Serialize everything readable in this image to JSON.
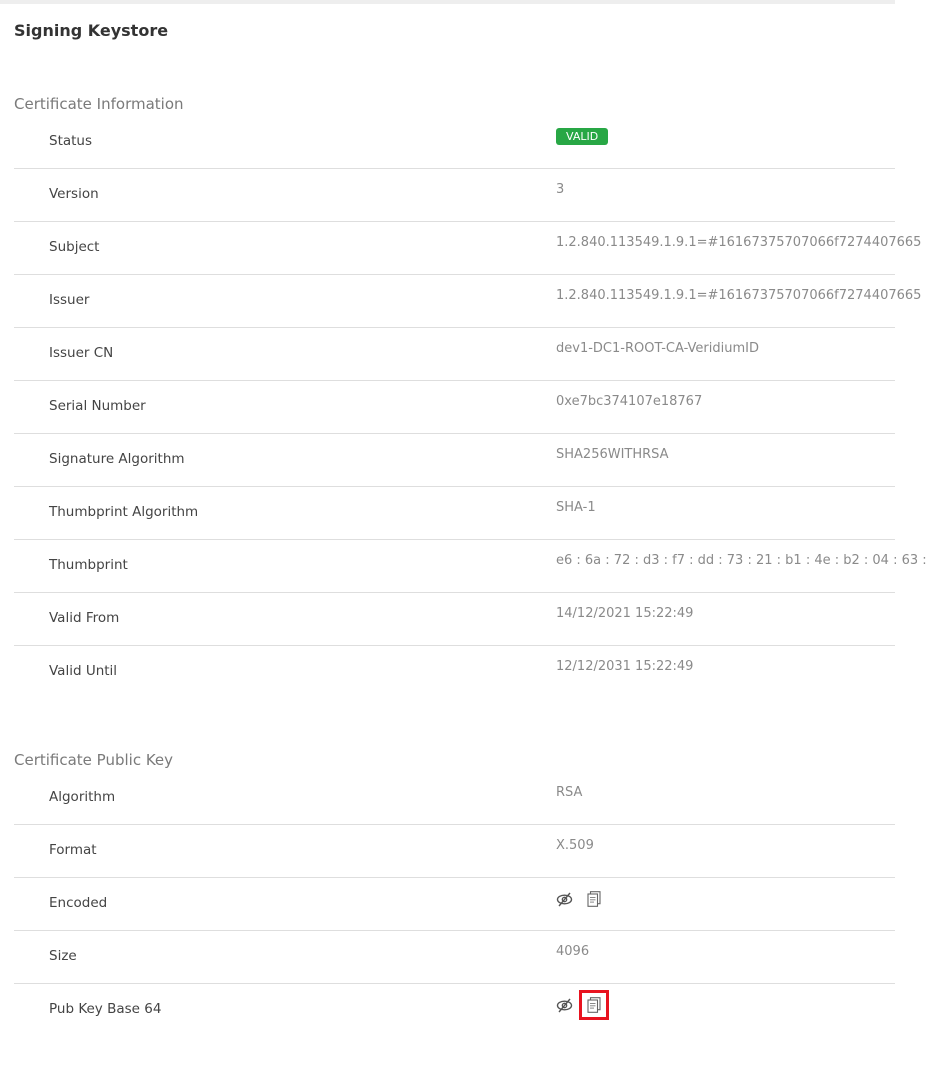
{
  "title": "Signing Keystore",
  "certificate_information": {
    "heading": "Certificate Information",
    "rows": [
      {
        "label": "Status",
        "value": "VALID",
        "type": "badge"
      },
      {
        "label": "Version",
        "value": "3"
      },
      {
        "label": "Subject",
        "value": "1.2.840.113549.1.9.1=#16167375707066f7274407665"
      },
      {
        "label": "Issuer",
        "value": "1.2.840.113549.1.9.1=#16167375707066f7274407665"
      },
      {
        "label": "Issuer CN",
        "value": "dev1-DC1-ROOT-CA-VeridiumID"
      },
      {
        "label": "Serial Number",
        "value": "0xe7bc374107e18767"
      },
      {
        "label": "Signature Algorithm",
        "value": "SHA256WITHRSA"
      },
      {
        "label": "Thumbprint Algorithm",
        "value": "SHA-1"
      },
      {
        "label": "Thumbprint",
        "value": "e6 : 6a : 72 : d3 : f7 : dd : 73 : 21 : b1 : 4e : b2 : 04 : 63 :"
      },
      {
        "label": "Valid From",
        "value": "14/12/2021 15:22:49"
      },
      {
        "label": "Valid Until",
        "value": "12/12/2031 15:22:49"
      }
    ]
  },
  "certificate_public_key": {
    "heading": "Certificate Public Key",
    "rows": [
      {
        "label": "Algorithm",
        "value": "RSA"
      },
      {
        "label": "Format",
        "value": "X.509"
      },
      {
        "label": "Encoded",
        "icons": [
          "eye-slash-icon",
          "copy-icon"
        ]
      },
      {
        "label": "Size",
        "value": "4096"
      },
      {
        "label": "Pub Key Base 64",
        "icons": [
          "eye-slash-icon",
          "copy-icon"
        ],
        "highlighted": "copy-icon"
      }
    ]
  },
  "colors": {
    "badge_valid": "#28a745",
    "highlight": "#e8131f"
  }
}
